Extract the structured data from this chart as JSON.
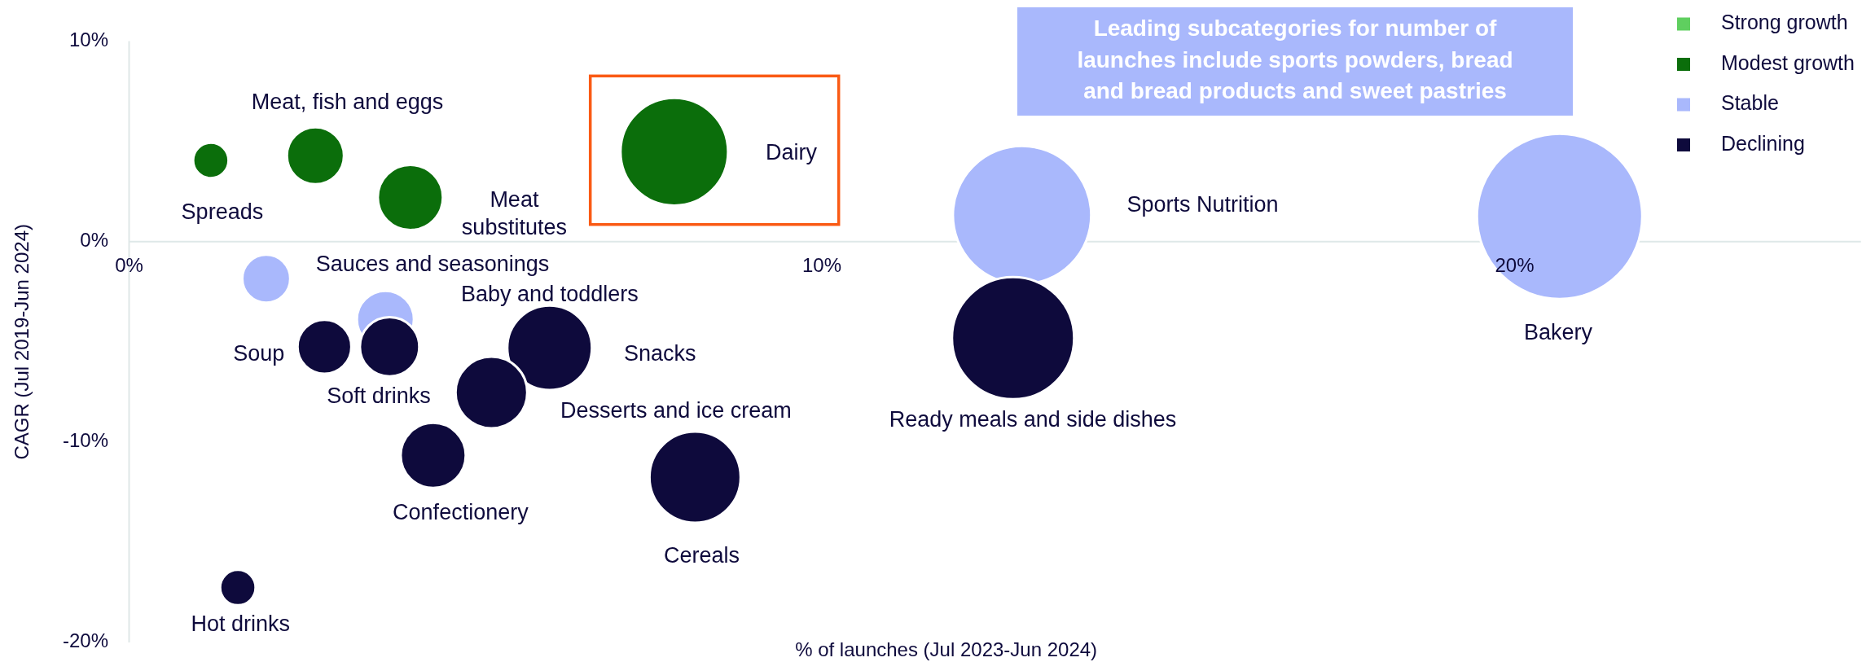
{
  "chart_data": {
    "type": "bubble",
    "xlabel": "% of launches (Jul 2023-Jun 2024)",
    "ylabel": "CAGR (Jul 2019-Jun 2024)",
    "xlim": [
      0,
      25
    ],
    "ylim": [
      -20,
      10
    ],
    "xticks": [
      {
        "value": 0,
        "label": "0%"
      },
      {
        "value": 10,
        "label": "10%"
      },
      {
        "value": 20,
        "label": "20%"
      }
    ],
    "yticks": [
      {
        "value": -20,
        "label": "-20%"
      },
      {
        "value": -10,
        "label": "-10%"
      },
      {
        "value": 0,
        "label": "0%"
      },
      {
        "value": 10,
        "label": "10%"
      }
    ],
    "grid": false,
    "legend": "top right",
    "series": [
      {
        "name": "Strong growth",
        "color": "#5fcf5f"
      },
      {
        "name": "Modest growth",
        "color": "#0b6e0b",
        "x": [
          1.18,
          2.69,
          4.06,
          7.87
        ],
        "values": [
          4.05,
          4.28,
          2.2,
          4.48
        ],
        "sizes": [
          0.046,
          0.119,
          0.155,
          0.423
        ]
      },
      {
        "name": "Stable",
        "color": "#a9b8fc",
        "x": [
          1.98,
          3.7,
          12.89,
          20.65
        ],
        "values": [
          -1.85,
          -3.88,
          1.32,
          1.26
        ],
        "sizes": [
          0.084,
          0.119,
          0.7,
          1
        ]
      },
      {
        "name": "Declining",
        "color": "#0e0a3c",
        "x": [
          2.82,
          3.76,
          6.07,
          5.23,
          4.39,
          8.17,
          1.57,
          12.76
        ],
        "values": [
          -5.25,
          -5.25,
          -5.3,
          -7.53,
          -10.67,
          -11.75,
          -17.26,
          -4.82
        ],
        "sizes": [
          0.106,
          0.129,
          0.262,
          0.188,
          0.155,
          0.304,
          0.046,
          0.546
        ]
      }
    ],
    "annotations": [
      "Spreads",
      "Meat, fish and eggs",
      "Meat substitutes",
      "Dairy",
      "Sauces and seasonings",
      "Baby and toddlers",
      "Sports Nutrition",
      "Bakery",
      "Soup",
      "Soft drinks",
      "Snacks",
      "Desserts and ice cream",
      "Confectionery",
      "Cereals",
      "Hot drinks",
      "Ready meals and side dishes",
      "Leading subcategories for number of launches include sports powders, bread and bread products and sweet pastries"
    ]
  }
}
